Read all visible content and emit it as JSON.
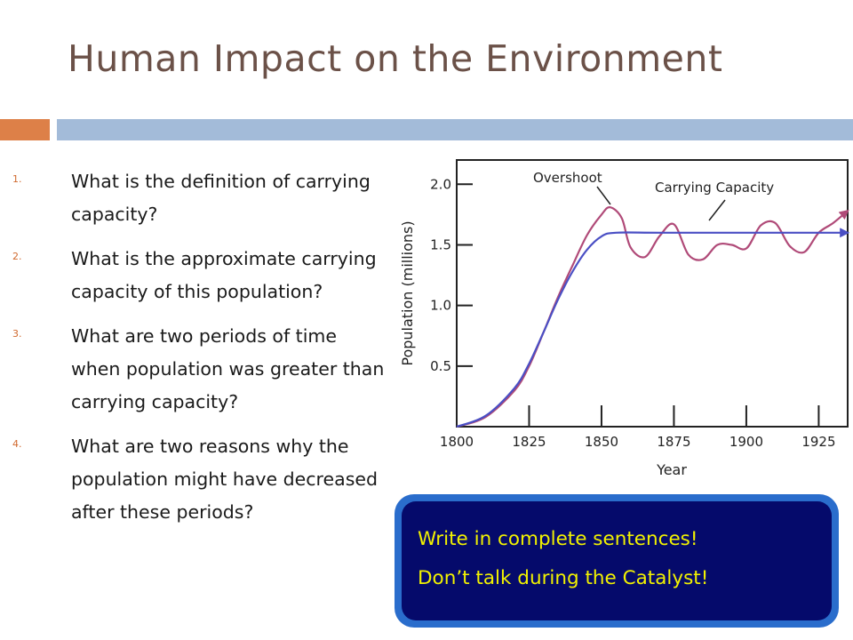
{
  "slide": {
    "title": "Human Impact on the Environment",
    "accent_colors": {
      "orange": "#dd8048",
      "blue": "#a3bbd9"
    }
  },
  "questions": [
    {
      "number": "1.",
      "text": "What is the definition of carrying capacity?"
    },
    {
      "number": "2.",
      "text": "What is the approximate carrying capacity of this population?"
    },
    {
      "number": "3.",
      "text": "What are two periods of time when population was greater than carrying capacity?"
    },
    {
      "number": "4.",
      "text": "What are two reasons why the population might have decreased after these periods?"
    }
  ],
  "callout": {
    "line1": "Write in complete sentences!",
    "line2": "Don’t talk during the Catalyst!"
  },
  "chart_data": {
    "type": "line",
    "xlabel": "Year",
    "ylabel": "Population (millions)",
    "xlim": [
      1800,
      1935
    ],
    "ylim": [
      0,
      2.2
    ],
    "x_ticks": [
      "1800",
      "1825",
      "1850",
      "1875",
      "1900",
      "1925"
    ],
    "y_ticks": [
      "0.5",
      "1.0",
      "1.5",
      "2.0"
    ],
    "annotations": [
      "Overshoot",
      "Carrying Capacity"
    ],
    "series": [
      {
        "color": "#4a4fc4",
        "x": [
          1800,
          1810,
          1820,
          1825,
          1830,
          1835,
          1840,
          1845,
          1850,
          1855,
          1870,
          1900,
          1935
        ],
        "y": [
          0.0,
          0.09,
          0.32,
          0.52,
          0.78,
          1.05,
          1.28,
          1.46,
          1.57,
          1.6,
          1.6,
          1.6,
          1.6
        ]
      },
      {
        "color": "#b04a78",
        "x": [
          1800,
          1810,
          1820,
          1825,
          1830,
          1835,
          1840,
          1845,
          1850,
          1853,
          1857,
          1860,
          1865,
          1870,
          1875,
          1880,
          1885,
          1890,
          1895,
          1900,
          1905,
          1910,
          1915,
          1920,
          1925,
          1930,
          1935
        ],
        "y": [
          0.0,
          0.08,
          0.3,
          0.5,
          0.78,
          1.07,
          1.33,
          1.58,
          1.75,
          1.81,
          1.72,
          1.48,
          1.4,
          1.57,
          1.67,
          1.42,
          1.38,
          1.5,
          1.5,
          1.47,
          1.66,
          1.68,
          1.49,
          1.44,
          1.6,
          1.68,
          1.78
        ]
      }
    ]
  }
}
